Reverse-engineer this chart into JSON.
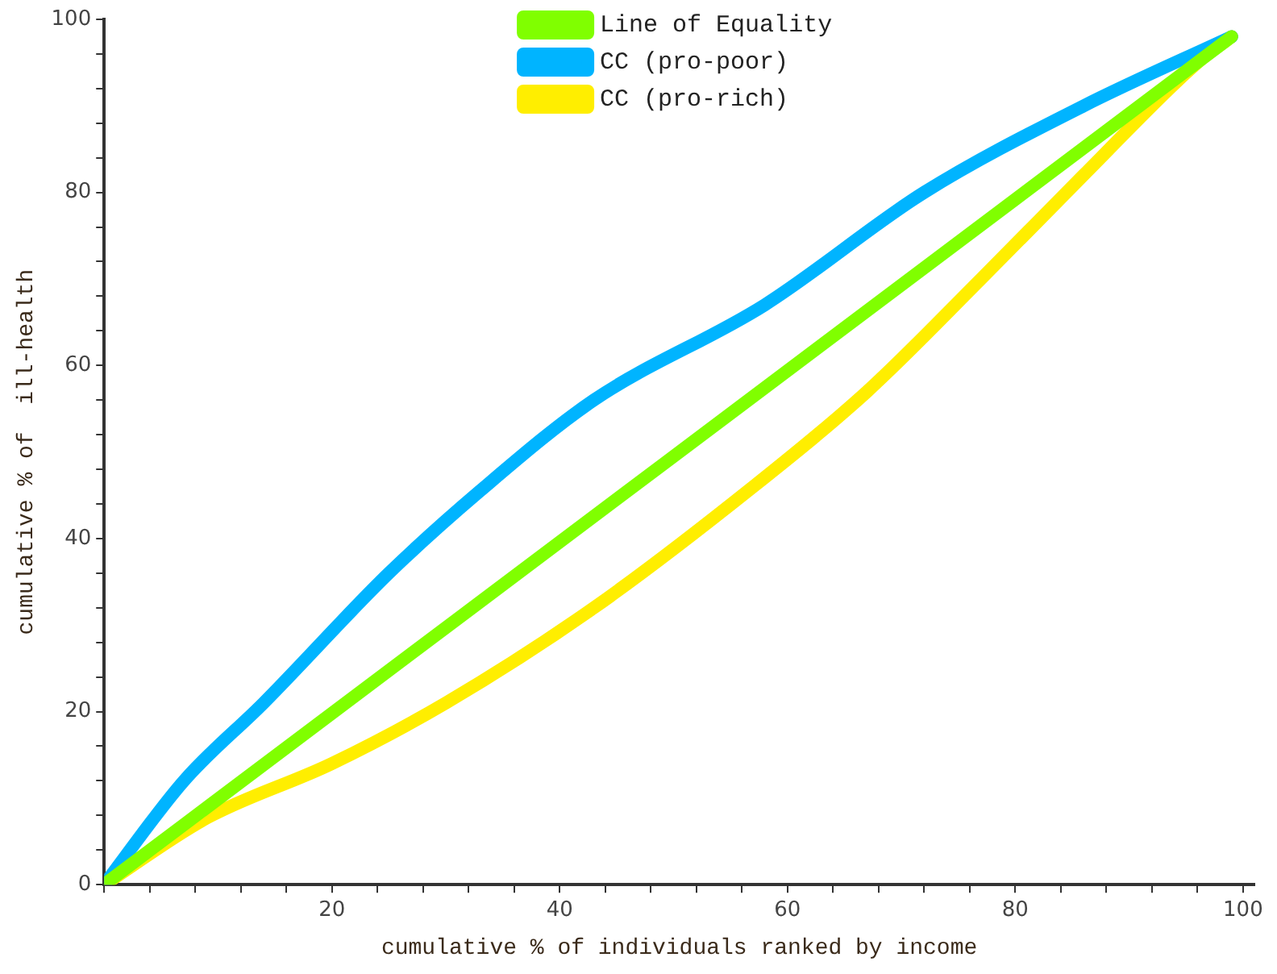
{
  "chart_data": {
    "type": "line",
    "xlabel": "cumulative % of individuals ranked by income",
    "ylabel": "cumulative % of  ill-health",
    "xlim": [
      0,
      101
    ],
    "ylim": [
      0,
      100
    ],
    "xticks": [
      {
        "value": 0,
        "label": null
      },
      {
        "value": 4,
        "label": null
      },
      {
        "value": 8,
        "label": null
      },
      {
        "value": 12,
        "label": null
      },
      {
        "value": 16,
        "label": null
      },
      20,
      {
        "value": 24,
        "label": null
      },
      {
        "value": 28,
        "label": null
      },
      {
        "value": 32,
        "label": null
      },
      {
        "value": 36,
        "label": null
      },
      40,
      {
        "value": 44,
        "label": null
      },
      {
        "value": 48,
        "label": null
      },
      {
        "value": 52,
        "label": null
      },
      {
        "value": 56,
        "label": null
      },
      60,
      {
        "value": 64,
        "label": null
      },
      {
        "value": 68,
        "label": null
      },
      {
        "value": 72,
        "label": null
      },
      {
        "value": 76,
        "label": null
      },
      80,
      {
        "value": 84,
        "label": null
      },
      {
        "value": 88,
        "label": null
      },
      {
        "value": 92,
        "label": null
      },
      {
        "value": 96,
        "label": null
      },
      100
    ],
    "yticks": [
      0,
      {
        "value": 4,
        "label": null
      },
      {
        "value": 8,
        "label": null
      },
      {
        "value": 12,
        "label": null
      },
      {
        "value": 16,
        "label": null
      },
      20,
      {
        "value": 24,
        "label": null
      },
      {
        "value": 28,
        "label": null
      },
      {
        "value": 32,
        "label": null
      },
      {
        "value": 36,
        "label": null
      },
      40,
      {
        "value": 44,
        "label": null
      },
      {
        "value": 48,
        "label": null
      },
      {
        "value": 52,
        "label": null
      },
      {
        "value": 56,
        "label": null
      },
      60,
      {
        "value": 64,
        "label": null
      },
      {
        "value": 68,
        "label": null
      },
      {
        "value": 72,
        "label": null
      },
      {
        "value": 76,
        "label": null
      },
      80,
      {
        "value": 84,
        "label": null
      },
      {
        "value": 88,
        "label": null
      },
      {
        "value": 92,
        "label": null
      },
      {
        "value": 96,
        "label": null
      },
      100
    ],
    "grid": false,
    "legend": "top",
    "marker": "none",
    "line_style": "solid",
    "series": [
      {
        "name": "Line of Equality",
        "color": "#80ff00",
        "x": [
          0,
          99
        ],
        "values": [
          0,
          98
        ]
      },
      {
        "name": "CC (pro-poor)",
        "color": "#00b4ff",
        "x": [
          0,
          7,
          14,
          25,
          33,
          43,
          58,
          72,
          86,
          99
        ],
        "values": [
          0,
          12,
          21,
          36,
          45.5,
          56,
          67,
          80,
          90,
          98
        ]
      },
      {
        "name": "CC (pro-rich)",
        "color": "#ffee00",
        "x": [
          0,
          9,
          20,
          30,
          43,
          57,
          67,
          77,
          86,
          96,
          99
        ],
        "values": [
          0,
          7.7,
          14,
          21,
          32,
          46,
          57,
          70,
          82,
          95,
          98
        ]
      }
    ]
  }
}
